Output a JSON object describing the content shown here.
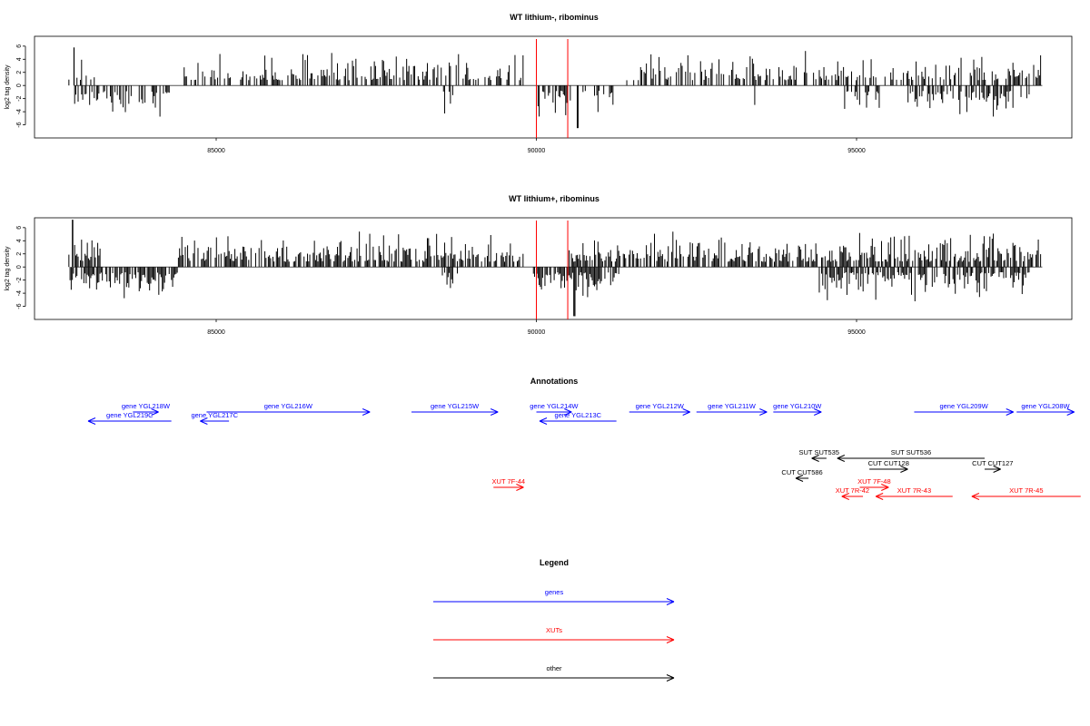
{
  "colors": {
    "gene": "#0000ff",
    "xut": "#ff0000",
    "other": "#000000",
    "marker": "#ff0000",
    "bar": "#000000"
  },
  "chart_data": [
    {
      "type": "bar",
      "title": "WT lithium-, ribominus",
      "ylabel": "log2 tag density",
      "xlim": [
        82600,
        98000
      ],
      "ylim": [
        -8,
        7.5
      ],
      "yticks": [
        -6,
        -4,
        -2,
        0,
        2,
        4,
        6
      ],
      "xticks": [
        85000,
        90000,
        95000
      ],
      "xtick_labels": [
        "85000",
        "90000",
        "95000"
      ],
      "markers": [
        90000,
        90490
      ],
      "positive_regions": [
        [
          82700,
          83100
        ],
        [
          84500,
          89800
        ],
        [
          91400,
          97900
        ]
      ],
      "negative_regions": [
        [
          82700,
          84300
        ],
        [
          88500,
          88800
        ],
        [
          89950,
          91200
        ],
        [
          93400,
          93450
        ],
        [
          94800,
          95400
        ],
        [
          95800,
          97700
        ]
      ],
      "peak_positions": [
        82780,
        90650
      ],
      "peak_values": [
        5.8,
        -6.5
      ]
    },
    {
      "type": "bar",
      "title": "WT lithium+, ribominus",
      "ylabel": "log2 tag density",
      "xlim": [
        82600,
        98000
      ],
      "ylim": [
        -8,
        7.5
      ],
      "yticks": [
        -6,
        -4,
        -2,
        0,
        2,
        4,
        6
      ],
      "xticks": [
        85000,
        90000,
        95000
      ],
      "xtick_labels": [
        "85000",
        "90000",
        "95000"
      ],
      "markers": [
        90000,
        90490
      ],
      "positive_regions": [
        [
          82700,
          83200
        ],
        [
          84400,
          89800
        ],
        [
          90500,
          97900
        ]
      ],
      "negative_regions": [
        [
          82700,
          84400
        ],
        [
          88500,
          88800
        ],
        [
          89950,
          91300
        ],
        [
          94400,
          97700
        ]
      ],
      "peak_positions": [
        82760,
        90600
      ],
      "peak_values": [
        7.2,
        -7.5
      ]
    }
  ],
  "annotations": {
    "title": "Annotations",
    "features": [
      {
        "label": "gene YGL218W",
        "type": "gene",
        "dir": "right",
        "start": 83700,
        "end": 84100,
        "row": 0
      },
      {
        "label": "gene YGL219C",
        "type": "gene",
        "dir": "left",
        "start": 83000,
        "end": 84300,
        "row": 1
      },
      {
        "label": "gene YGL216W",
        "type": "gene",
        "dir": "right",
        "start": 84850,
        "end": 87400,
        "row": 0
      },
      {
        "label": "gene YGL217C",
        "type": "gene",
        "dir": "left",
        "start": 84750,
        "end": 85200,
        "row": 1
      },
      {
        "label": "gene YGL215W",
        "type": "gene",
        "dir": "right",
        "start": 88050,
        "end": 89400,
        "row": 0
      },
      {
        "label": "gene YGL214W",
        "type": "gene",
        "dir": "right",
        "start": 90000,
        "end": 90550,
        "row": 0
      },
      {
        "label": "gene YGL213C",
        "type": "gene",
        "dir": "left",
        "start": 90050,
        "end": 91250,
        "row": 1
      },
      {
        "label": "gene YGL212W",
        "type": "gene",
        "dir": "right",
        "start": 91450,
        "end": 92400,
        "row": 0
      },
      {
        "label": "gene YGL211W",
        "type": "gene",
        "dir": "right",
        "start": 92500,
        "end": 93600,
        "row": 0
      },
      {
        "label": "gene YGL210W",
        "type": "gene",
        "dir": "right",
        "start": 93700,
        "end": 94450,
        "row": 0
      },
      {
        "label": "gene YGL209W",
        "type": "gene",
        "dir": "right",
        "start": 95900,
        "end": 97450,
        "row": 0
      },
      {
        "label": "gene YGL208W",
        "type": "gene",
        "dir": "right",
        "start": 97500,
        "end": 98400,
        "row": 0
      },
      {
        "label": "SUT SUT535",
        "type": "other",
        "dir": "left",
        "start": 94300,
        "end": 94530,
        "row": 2
      },
      {
        "label": "SUT SUT536",
        "type": "other",
        "dir": "left",
        "start": 94700,
        "end": 97000,
        "row": 2
      },
      {
        "label": "CUT CUT128",
        "type": "other",
        "dir": "right",
        "start": 95200,
        "end": 95800,
        "row": 3
      },
      {
        "label": "CUT CUT127",
        "type": "other",
        "dir": "right",
        "start": 97000,
        "end": 97250,
        "row": 3
      },
      {
        "label": "CUT CUT586",
        "type": "other",
        "dir": "left",
        "start": 94050,
        "end": 94250,
        "row": 4
      },
      {
        "label": "XUT 7F-44",
        "type": "xut",
        "dir": "right",
        "start": 89330,
        "end": 89800,
        "row": 5
      },
      {
        "label": "XUT 7F-48",
        "type": "xut",
        "dir": "right",
        "start": 95050,
        "end": 95500,
        "row": 5
      },
      {
        "label": "XUT 7R-42",
        "type": "xut",
        "dir": "left",
        "start": 94770,
        "end": 95100,
        "row": 6
      },
      {
        "label": "XUT 7R-43",
        "type": "xut",
        "dir": "left",
        "start": 95300,
        "end": 96500,
        "row": 6
      },
      {
        "label": "XUT 7R-45",
        "type": "xut",
        "dir": "left",
        "start": 96800,
        "end": 98500,
        "row": 6
      }
    ]
  },
  "legend": {
    "title": "Legend",
    "items": [
      {
        "label": "genes",
        "type": "gene"
      },
      {
        "label": "XUTs",
        "type": "xut"
      },
      {
        "label": "other",
        "type": "other"
      }
    ]
  }
}
